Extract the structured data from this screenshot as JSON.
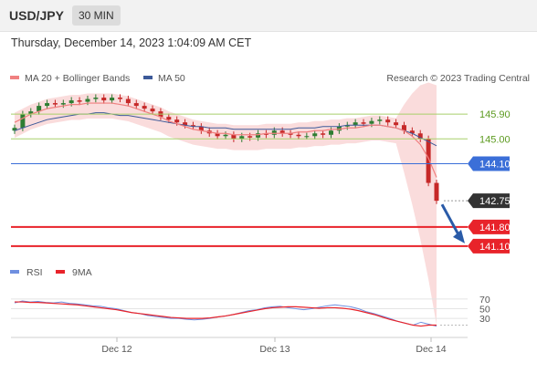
{
  "header": {
    "pair": "USD/JPY",
    "timeframe": "30 MIN"
  },
  "timestamp": "Thursday, December 14, 2023 1:04:09 AM CET",
  "legend": {
    "ma20": "MA 20 + Bollinger Bands",
    "ma50": "MA 50",
    "credit": "Research © 2023 Trading Central",
    "rsi": "RSI",
    "ma9": "9MA"
  },
  "colors": {
    "bg": "#ffffff",
    "up": "#2e7d32",
    "down": "#c62828",
    "ma20": "#f08080",
    "band": "#f9d6d6",
    "ma50": "#3d5a99",
    "blue_level": "#3b6fd8",
    "green_level": "#a8cf6a",
    "red_level": "#e8232a",
    "arrow": "#2a5ba8",
    "current": "#333333"
  },
  "chart_data": [
    {
      "type": "candlestick",
      "title": "USD/JPY 30 MIN",
      "ylim": [
        140.7,
        146.8
      ],
      "x_ticks": [
        "Dec 12",
        "Dec 13",
        "Dec 14"
      ],
      "levels": [
        {
          "value": 145.9,
          "label": "145.90",
          "kind": "resistance"
        },
        {
          "value": 145.0,
          "label": "145.00",
          "kind": "resistance"
        },
        {
          "value": 144.1,
          "label": "144.10",
          "kind": "pivot"
        },
        {
          "value": 142.75,
          "label": "142.75",
          "kind": "current"
        },
        {
          "value": 141.8,
          "label": "141.80",
          "kind": "support"
        },
        {
          "value": 141.1,
          "label": "141.10",
          "kind": "support"
        }
      ],
      "close": [
        145.4,
        145.9,
        146.0,
        146.2,
        146.3,
        146.25,
        146.3,
        146.4,
        146.35,
        146.45,
        146.5,
        146.4,
        146.5,
        146.45,
        146.3,
        146.2,
        146.1,
        146.0,
        145.8,
        145.7,
        145.6,
        145.5,
        145.45,
        145.3,
        145.2,
        145.1,
        145.15,
        145.0,
        145.1,
        145.05,
        145.2,
        145.15,
        145.3,
        145.2,
        145.15,
        145.1,
        145.1,
        145.2,
        145.15,
        145.3,
        145.45,
        145.5,
        145.6,
        145.55,
        145.65,
        145.7,
        145.6,
        145.5,
        145.3,
        145.2,
        145.0,
        143.4,
        142.75
      ],
      "ma20": [
        145.6,
        145.75,
        145.9,
        146.0,
        146.1,
        146.15,
        146.2,
        146.25,
        146.25,
        146.3,
        146.3,
        146.3,
        146.3,
        146.25,
        146.2,
        146.1,
        146.0,
        145.9,
        145.8,
        145.65,
        145.55,
        145.45,
        145.35,
        145.3,
        145.25,
        145.2,
        145.2,
        145.15,
        145.15,
        145.15,
        145.15,
        145.2,
        145.2,
        145.2,
        145.2,
        145.25,
        145.25,
        145.3,
        145.3,
        145.35,
        145.35,
        145.4,
        145.4,
        145.45,
        145.5,
        145.5,
        145.45,
        145.4,
        145.3,
        145.1,
        144.8,
        144.3,
        143.6
      ],
      "ma50": [
        145.3,
        145.4,
        145.5,
        145.6,
        145.7,
        145.75,
        145.8,
        145.85,
        145.9,
        145.9,
        145.95,
        145.95,
        145.9,
        145.85,
        145.85,
        145.8,
        145.75,
        145.7,
        145.65,
        145.6,
        145.55,
        145.5,
        145.45,
        145.45,
        145.4,
        145.4,
        145.4,
        145.35,
        145.35,
        145.35,
        145.35,
        145.35,
        145.35,
        145.35,
        145.35,
        145.4,
        145.4,
        145.4,
        145.45,
        145.45,
        145.45,
        145.5,
        145.5,
        145.5,
        145.5,
        145.5,
        145.45,
        145.4,
        145.3,
        145.2,
        145.05,
        144.9,
        144.75
      ]
    },
    {
      "type": "line",
      "title": "RSI",
      "ylim": [
        0,
        100
      ],
      "y_ticks": [
        30,
        50,
        70
      ],
      "series": [
        {
          "name": "RSI",
          "values": [
            62,
            66,
            64,
            65,
            63,
            62,
            64,
            61,
            60,
            58,
            56,
            55,
            52,
            50,
            46,
            42,
            40,
            36,
            34,
            32,
            30,
            30,
            28,
            27,
            28,
            30,
            33,
            35,
            38,
            42,
            46,
            48,
            52,
            54,
            55,
            52,
            50,
            48,
            50,
            53,
            56,
            58,
            56,
            54,
            50,
            44,
            40,
            35,
            30,
            24,
            20,
            16,
            22,
            18,
            14
          ]
        },
        {
          "name": "9MA",
          "values": [
            64,
            64,
            63,
            63,
            62,
            61,
            60,
            59,
            58,
            56,
            54,
            52,
            50,
            48,
            45,
            42,
            40,
            38,
            36,
            34,
            32,
            31,
            30,
            30,
            30,
            31,
            33,
            35,
            38,
            41,
            44,
            47,
            50,
            52,
            53,
            54,
            54,
            53,
            52,
            51,
            52,
            52,
            51,
            49,
            46,
            42,
            38,
            33,
            28,
            24,
            20,
            16,
            14,
            16,
            16
          ]
        }
      ]
    }
  ]
}
